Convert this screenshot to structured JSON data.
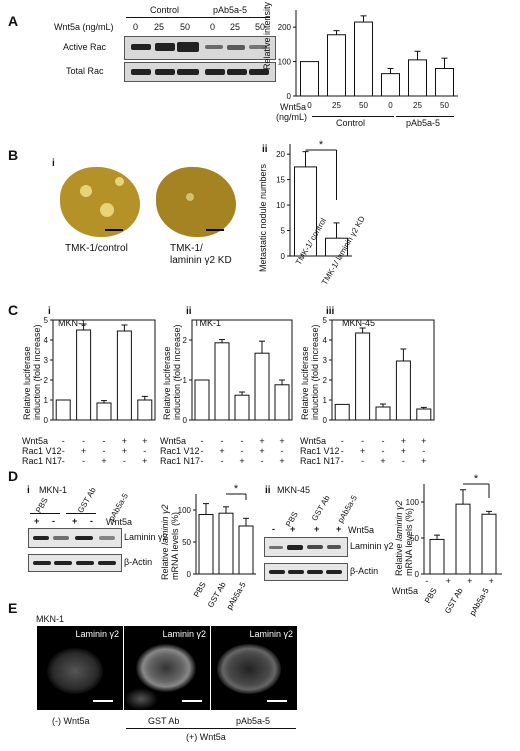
{
  "panels": {
    "A": "A",
    "B": "B",
    "C": "C",
    "D": "D",
    "E": "E"
  },
  "A": {
    "blot": {
      "control_label": "Control",
      "pab_label": "pAb5a-5",
      "wnt_label": "Wnt5a (ng/mL)",
      "doses": [
        "0",
        "25",
        "50",
        "0",
        "25",
        "50"
      ],
      "rows": [
        "Active Rac",
        "Total Rac"
      ]
    },
    "chart_data": {
      "type": "bar",
      "ylabel": "Relative intensity (%)",
      "ylim": [
        0,
        250
      ],
      "yticks": [
        "0",
        "100",
        "200"
      ],
      "categories": [
        "0",
        "25",
        "50",
        "0",
        "25",
        "50"
      ],
      "groups": [
        "Control",
        "pAb5a-5"
      ],
      "xlabel_prefix": "Wnt5a",
      "xlabel_unit": "(ng/mL)",
      "values": [
        100,
        178,
        215,
        65,
        105,
        80
      ],
      "errors": [
        0,
        12,
        18,
        15,
        25,
        30
      ]
    }
  },
  "B": {
    "sub_i": "i",
    "sub_ii": "ii",
    "caption_left": "TMK-1/control",
    "caption_right": [
      "TMK-1/",
      "laminin γ2 KD"
    ],
    "chart_data": {
      "type": "bar",
      "ylabel": "Metastatic nodule numbers",
      "ylim": [
        0,
        22
      ],
      "yticks": [
        "0",
        "5",
        "10",
        "15",
        "20"
      ],
      "categories": [
        "TMK-1/ control",
        "TMK-1/ laminin γ2 KD"
      ],
      "values": [
        17.5,
        3.5
      ],
      "errors": [
        3.0,
        3.0
      ],
      "significance": "*"
    }
  },
  "C": {
    "ylabel": [
      "Relative luciferase",
      "induction (fold increase)"
    ],
    "rows": [
      "Wnt5a",
      "Rac1 V12",
      "Rac1 N17"
    ],
    "signs": {
      "wnt": [
        "-",
        "-",
        "-",
        "+",
        "+"
      ],
      "v12": [
        "-",
        "+",
        "-",
        "+",
        "-"
      ],
      "n17": [
        "-",
        "-",
        "+",
        "-",
        "+"
      ]
    },
    "chart_data": [
      {
        "type": "bar",
        "sub": "i",
        "title": "MKN-1",
        "ylim": [
          0,
          5
        ],
        "yticks": [
          "0",
          "1",
          "2",
          "3",
          "4",
          "5"
        ],
        "categories": [
          "1",
          "2",
          "3",
          "4",
          "5"
        ],
        "values": [
          1.0,
          4.5,
          0.85,
          4.45,
          1.0
        ],
        "errors": [
          0,
          0.3,
          0.12,
          0.3,
          0.18
        ]
      },
      {
        "type": "bar",
        "sub": "ii",
        "title": "TMK-1",
        "ylim": [
          0,
          2.5
        ],
        "yticks": [
          "0",
          "1",
          "2"
        ],
        "categories": [
          "1",
          "2",
          "3",
          "4",
          "5"
        ],
        "values": [
          1.0,
          1.93,
          0.62,
          1.67,
          0.88
        ],
        "errors": [
          0,
          0.08,
          0.08,
          0.3,
          0.12
        ]
      },
      {
        "type": "bar",
        "sub": "iii",
        "title": "MKN-45",
        "ylim": [
          0,
          5
        ],
        "yticks": [
          "0",
          "1",
          "2",
          "3",
          "4",
          "5"
        ],
        "categories": [
          "1",
          "2",
          "3",
          "4",
          "5"
        ],
        "values": [
          0.78,
          4.35,
          0.65,
          2.95,
          0.55
        ],
        "errors": [
          0,
          0.25,
          0.15,
          0.6,
          0.08
        ]
      }
    ]
  },
  "D": {
    "sub_i": "i",
    "sub_ii": "ii",
    "left_title": "MKN-1",
    "right_title": "MKN-45",
    "lanes_left": [
      "PBS",
      "GST Ab",
      "pAb5a-5"
    ],
    "lanes_right": [
      "PBS",
      "GST Ab",
      "pAb5a-5"
    ],
    "signs_left": [
      "+",
      "-",
      "+",
      "-"
    ],
    "signs_right": [
      "-",
      "+",
      "+",
      "+"
    ],
    "wnt_label": "Wnt5a",
    "laminin_label": "Laminin γ2",
    "actin_label": "β-Actin",
    "ylabel_pre": "Relative ",
    "ylabel_ital": "laminin γ2",
    "ylabel_line2": "mRNA levels (%)",
    "chart_data": [
      {
        "type": "bar",
        "ylim": [
          0,
          125
        ],
        "yticks": [
          "0",
          "50",
          "100"
        ],
        "categories": [
          "PBS",
          "GST Ab",
          "pAb5a-5"
        ],
        "values": [
          93,
          95,
          75
        ],
        "errors": [
          17,
          10,
          12
        ],
        "significance": "*"
      },
      {
        "type": "bar",
        "ylim": [
          0,
          125
        ],
        "yticks": [
          "0",
          "50",
          "100"
        ],
        "categories": [
          "PBS",
          "GST Ab",
          "pAb5a-5"
        ],
        "values": [
          48,
          97,
          83
        ],
        "errors": [
          6,
          20,
          4
        ],
        "significance": "*",
        "wnt_signs": [
          "-",
          "+",
          "+",
          "+"
        ]
      }
    ]
  },
  "E": {
    "title": "MKN-1",
    "labels": [
      "Laminin γ2",
      "Laminin γ2",
      "Laminin γ2"
    ],
    "captions": [
      "(-) Wnt5a",
      "GST Ab",
      "pAb5a-5"
    ],
    "group_caption": "(+) Wnt5a"
  },
  "colors": {
    "bar": "#ffffff",
    "ink": "#111111",
    "lung": "#b59228"
  }
}
